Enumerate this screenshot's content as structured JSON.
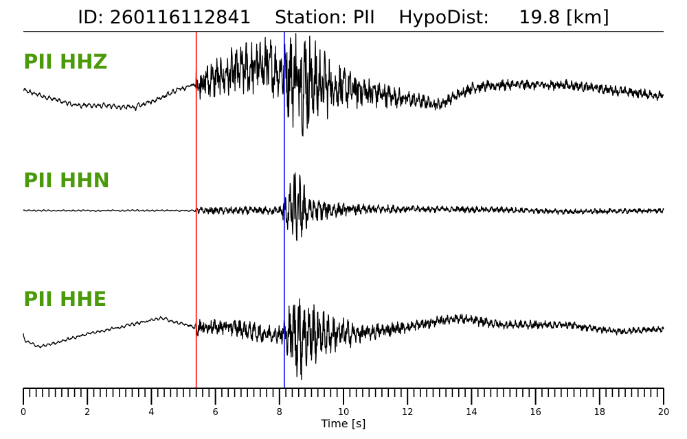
{
  "header": {
    "title": "ID: 260116112841    Station: PII    HypoDist:     19.8 [km]"
  },
  "chart_data": {
    "type": "line",
    "event_id": "260116112841",
    "station": "PII",
    "hypodist_km": 19.8,
    "xlabel": "Time [s]",
    "xlim": [
      0,
      20
    ],
    "x_ticks": [
      0,
      2,
      4,
      6,
      8,
      10,
      12,
      14,
      16,
      18,
      20
    ],
    "minor_tick_step": 0.2,
    "picks": [
      {
        "phase": "P",
        "time": 5.4,
        "color": "#ff0000"
      },
      {
        "phase": "S",
        "time": 8.15,
        "color": "#0000ff"
      }
    ],
    "traces": [
      {
        "name": "PII HHZ",
        "p_time": 5.4,
        "s_time": 8.15,
        "envelope": [
          [
            0,
            0.07
          ],
          [
            5.3,
            0.08
          ],
          [
            5.4,
            0.28
          ],
          [
            6.5,
            0.4
          ],
          [
            7.6,
            0.55
          ],
          [
            8.0,
            0.4
          ],
          [
            8.3,
            0.75
          ],
          [
            8.8,
            1.0
          ],
          [
            9.3,
            0.6
          ],
          [
            10.0,
            0.35
          ],
          [
            12.0,
            0.14
          ],
          [
            13.0,
            0.1
          ],
          [
            20.0,
            0.08
          ]
        ],
        "drift": [
          [
            0,
            0
          ],
          [
            1.5,
            -0.25
          ],
          [
            3.5,
            -0.3
          ],
          [
            5,
            0.05
          ],
          [
            6.5,
            0.3
          ],
          [
            7.5,
            0.45
          ],
          [
            9,
            0.15
          ],
          [
            11,
            -0.05
          ],
          [
            12.5,
            -0.2
          ],
          [
            13,
            -0.25
          ],
          [
            14,
            0.05
          ],
          [
            15,
            0.1
          ],
          [
            17,
            0.1
          ],
          [
            20,
            -0.1
          ]
        ]
      },
      {
        "name": "PII HHN",
        "p_time": 5.4,
        "s_time": 8.15,
        "envelope": [
          [
            0,
            0.03
          ],
          [
            5.3,
            0.03
          ],
          [
            5.4,
            0.08
          ],
          [
            8.0,
            0.1
          ],
          [
            8.3,
            0.55
          ],
          [
            8.5,
            1.0
          ],
          [
            9.0,
            0.3
          ],
          [
            10.0,
            0.15
          ],
          [
            12.0,
            0.08
          ],
          [
            20.0,
            0.06
          ]
        ],
        "drift": [
          [
            0,
            0
          ],
          [
            5,
            0
          ],
          [
            8,
            0
          ],
          [
            12,
            0.04
          ],
          [
            15,
            0.02
          ],
          [
            17,
            -0.03
          ],
          [
            20,
            0
          ]
        ]
      },
      {
        "name": "PII HHE",
        "p_time": 5.4,
        "s_time": 8.15,
        "envelope": [
          [
            0,
            0.05
          ],
          [
            5.3,
            0.06
          ],
          [
            5.4,
            0.18
          ],
          [
            8.0,
            0.2
          ],
          [
            8.3,
            0.6
          ],
          [
            8.6,
            1.0
          ],
          [
            9.3,
            0.5
          ],
          [
            10.5,
            0.2
          ],
          [
            12.0,
            0.12
          ],
          [
            20.0,
            0.06
          ]
        ],
        "drift": [
          [
            0,
            -0.25
          ],
          [
            0.5,
            -0.4
          ],
          [
            2,
            -0.1
          ],
          [
            4.3,
            0.25
          ],
          [
            5.3,
            0.05
          ],
          [
            6.5,
            0.05
          ],
          [
            7.5,
            -0.1
          ],
          [
            9,
            -0.1
          ],
          [
            10.5,
            -0.1
          ],
          [
            12,
            0.05
          ],
          [
            13.5,
            0.25
          ],
          [
            15,
            0.1
          ],
          [
            17,
            0.1
          ],
          [
            18.5,
            -0.05
          ],
          [
            20,
            0
          ]
        ]
      }
    ]
  }
}
